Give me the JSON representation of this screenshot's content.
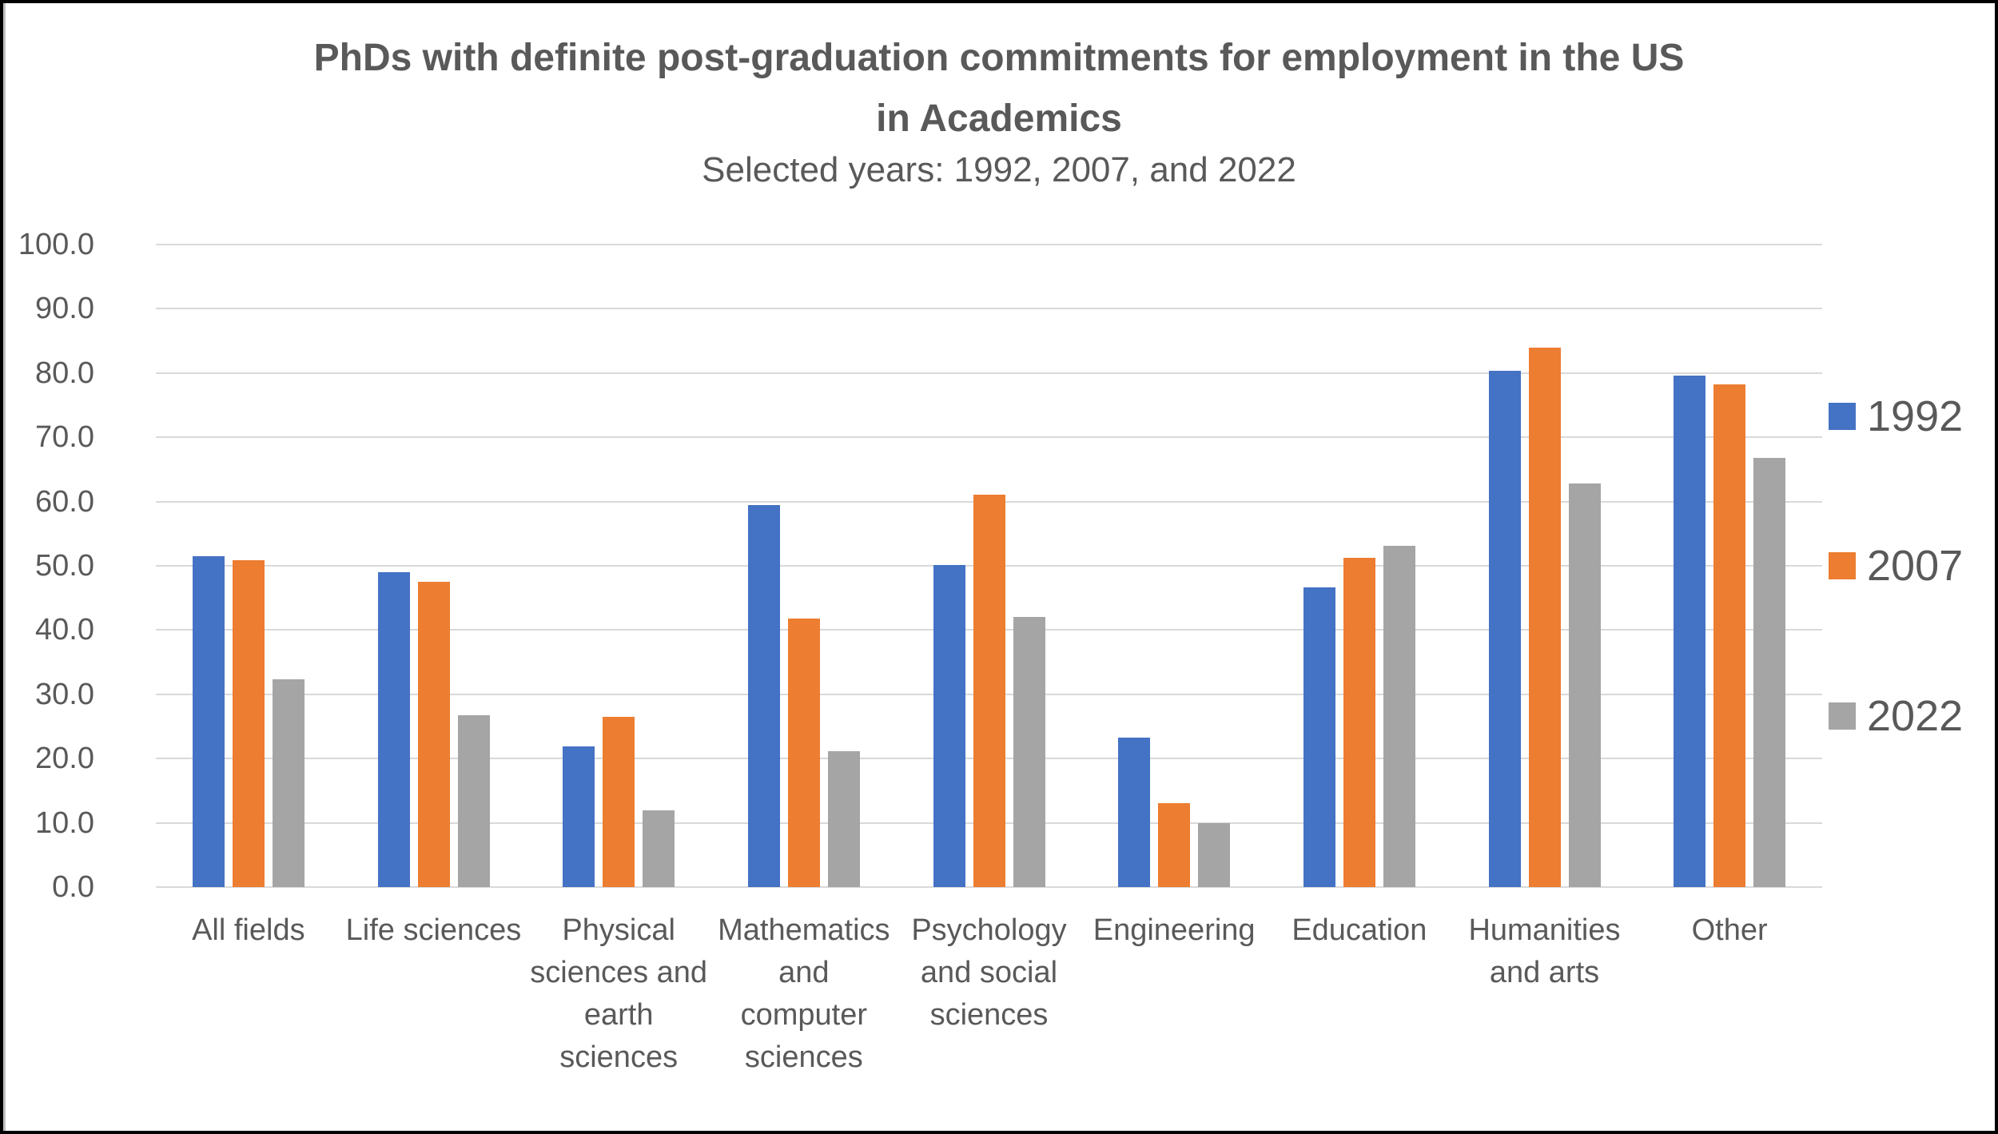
{
  "chart_data": {
    "type": "bar",
    "title": "PhDs with definite post-graduation commitments for employment in the US in Academics",
    "title_lines": [
      "PhDs with definite post-graduation commitments for employment in the US",
      "in Academics"
    ],
    "subtitle": "Selected years: 1992, 2007, and 2022",
    "xlabel": "",
    "ylabel": "",
    "ylim": [
      0,
      100
    ],
    "yticks": [
      "0.0",
      "10.0",
      "20.0",
      "30.0",
      "40.0",
      "50.0",
      "60.0",
      "70.0",
      "80.0",
      "90.0",
      "100.0"
    ],
    "grid": true,
    "legend_position": "right",
    "categories": [
      "All fields",
      "Life sciences",
      "Physical sciences and earth sciences",
      "Mathematics and computer sciences",
      "Psychology and social sciences",
      "Engineering",
      "Education",
      "Humanities and arts",
      "Other"
    ],
    "category_label_lines": [
      "All fields",
      "Life sciences",
      "Physical\nsciences and\nearth\nsciences",
      "Mathematics\nand\ncomputer\nsciences",
      "Psychology\nand social\nsciences",
      "Engineering",
      "Education",
      "Humanities\nand arts",
      "Other"
    ],
    "series": [
      {
        "name": "1992",
        "color": "#4472c4",
        "values": [
          51.5,
          49.0,
          21.9,
          59.4,
          50.1,
          23.2,
          46.6,
          80.4,
          79.6
        ]
      },
      {
        "name": "2007",
        "color": "#ed7d31",
        "values": [
          50.9,
          47.5,
          26.5,
          41.8,
          61.1,
          13.1,
          51.3,
          84.0,
          78.2
        ]
      },
      {
        "name": "2022",
        "color": "#a5a5a5",
        "values": [
          32.3,
          26.7,
          11.9,
          21.2,
          42.0,
          10.0,
          53.1,
          62.8,
          66.8
        ]
      }
    ]
  }
}
